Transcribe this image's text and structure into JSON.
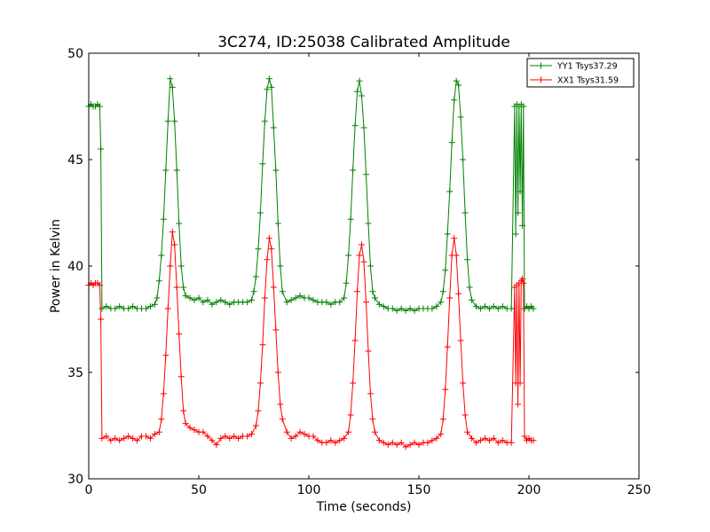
{
  "chart_data": {
    "type": "line",
    "title": "3C274, ID:25038 Calibrated Amplitude",
    "xlabel": "Time (seconds)",
    "ylabel": "Power in Kelvin",
    "xlim": [
      0,
      250
    ],
    "ylim": [
      30,
      50
    ],
    "xticks": [
      0,
      50,
      100,
      150,
      200,
      250
    ],
    "yticks": [
      30,
      35,
      40,
      45,
      50
    ],
    "grid": false,
    "legend_position": "top-right",
    "marker": "plus",
    "series": [
      {
        "name": "YY1 Tsys37.29",
        "color": "#008000",
        "points": [
          [
            0,
            47.5
          ],
          [
            1,
            47.6
          ],
          [
            2,
            47.5
          ],
          [
            3,
            47.5
          ],
          [
            4,
            47.6
          ],
          [
            5,
            47.5
          ],
          [
            5.5,
            45.5
          ],
          [
            6,
            38.0
          ],
          [
            8,
            38.1
          ],
          [
            10,
            38.0
          ],
          [
            12,
            38.0
          ],
          [
            14,
            38.1
          ],
          [
            16,
            38.0
          ],
          [
            18,
            38.0
          ],
          [
            20,
            38.1
          ],
          [
            22,
            38.0
          ],
          [
            24,
            38.0
          ],
          [
            26,
            38.0
          ],
          [
            28,
            38.1
          ],
          [
            30,
            38.2
          ],
          [
            31,
            38.5
          ],
          [
            32,
            39.3
          ],
          [
            33,
            40.5
          ],
          [
            34,
            42.2
          ],
          [
            35,
            44.5
          ],
          [
            36,
            46.8
          ],
          [
            37,
            48.8
          ],
          [
            38,
            48.4
          ],
          [
            39,
            46.8
          ],
          [
            40,
            44.5
          ],
          [
            41,
            42.0
          ],
          [
            42,
            40.0
          ],
          [
            43,
            39.0
          ],
          [
            44,
            38.6
          ],
          [
            46,
            38.5
          ],
          [
            48,
            38.4
          ],
          [
            50,
            38.5
          ],
          [
            52,
            38.3
          ],
          [
            54,
            38.4
          ],
          [
            56,
            38.2
          ],
          [
            58,
            38.3
          ],
          [
            60,
            38.4
          ],
          [
            62,
            38.3
          ],
          [
            64,
            38.2
          ],
          [
            66,
            38.3
          ],
          [
            68,
            38.3
          ],
          [
            70,
            38.3
          ],
          [
            72,
            38.3
          ],
          [
            74,
            38.4
          ],
          [
            75,
            38.8
          ],
          [
            76,
            39.5
          ],
          [
            77,
            40.8
          ],
          [
            78,
            42.5
          ],
          [
            79,
            44.8
          ],
          [
            80,
            46.8
          ],
          [
            81,
            48.3
          ],
          [
            82,
            48.8
          ],
          [
            83,
            48.4
          ],
          [
            84,
            46.5
          ],
          [
            85,
            44.5
          ],
          [
            86,
            42.0
          ],
          [
            87,
            40.0
          ],
          [
            88,
            38.8
          ],
          [
            90,
            38.3
          ],
          [
            92,
            38.4
          ],
          [
            94,
            38.5
          ],
          [
            96,
            38.6
          ],
          [
            98,
            38.5
          ],
          [
            100,
            38.5
          ],
          [
            102,
            38.4
          ],
          [
            104,
            38.3
          ],
          [
            106,
            38.3
          ],
          [
            108,
            38.3
          ],
          [
            110,
            38.2
          ],
          [
            112,
            38.3
          ],
          [
            114,
            38.3
          ],
          [
            116,
            38.5
          ],
          [
            117,
            39.2
          ],
          [
            118,
            40.5
          ],
          [
            119,
            42.2
          ],
          [
            120,
            44.5
          ],
          [
            121,
            46.6
          ],
          [
            122,
            48.2
          ],
          [
            123,
            48.7
          ],
          [
            124,
            48.0
          ],
          [
            125,
            46.5
          ],
          [
            126,
            44.3
          ],
          [
            127,
            42.0
          ],
          [
            128,
            40.0
          ],
          [
            129,
            38.8
          ],
          [
            130,
            38.5
          ],
          [
            132,
            38.2
          ],
          [
            134,
            38.1
          ],
          [
            136,
            38.0
          ],
          [
            138,
            38.0
          ],
          [
            140,
            37.9
          ],
          [
            142,
            38.0
          ],
          [
            144,
            37.9
          ],
          [
            146,
            38.0
          ],
          [
            148,
            37.9
          ],
          [
            150,
            38.0
          ],
          [
            152,
            38.0
          ],
          [
            154,
            38.0
          ],
          [
            156,
            38.0
          ],
          [
            158,
            38.1
          ],
          [
            160,
            38.3
          ],
          [
            161,
            38.8
          ],
          [
            162,
            39.8
          ],
          [
            163,
            41.5
          ],
          [
            164,
            43.5
          ],
          [
            165,
            45.8
          ],
          [
            166,
            47.8
          ],
          [
            167,
            48.7
          ],
          [
            168,
            48.5
          ],
          [
            169,
            47.0
          ],
          [
            170,
            45.0
          ],
          [
            171,
            42.5
          ],
          [
            172,
            40.3
          ],
          [
            173,
            39.0
          ],
          [
            174,
            38.4
          ],
          [
            176,
            38.1
          ],
          [
            178,
            38.0
          ],
          [
            180,
            38.1
          ],
          [
            182,
            38.0
          ],
          [
            184,
            38.1
          ],
          [
            186,
            38.0
          ],
          [
            188,
            38.1
          ],
          [
            190,
            38.0
          ],
          [
            192,
            38.0
          ],
          [
            193.5,
            47.5
          ],
          [
            194,
            41.5
          ],
          [
            194.5,
            47.6
          ],
          [
            195,
            42.5
          ],
          [
            195.5,
            47.5
          ],
          [
            196,
            43.5
          ],
          [
            196.5,
            47.6
          ],
          [
            197,
            41.9
          ],
          [
            197.5,
            47.5
          ],
          [
            198,
            38.0
          ],
          [
            199,
            38.1
          ],
          [
            200,
            38.0
          ],
          [
            201,
            38.1
          ],
          [
            202,
            38.0
          ]
        ]
      },
      {
        "name": "XX1 Tsys31.59",
        "color": "#ff0000",
        "points": [
          [
            0,
            39.1
          ],
          [
            1,
            39.2
          ],
          [
            2,
            39.1
          ],
          [
            3,
            39.2
          ],
          [
            4,
            39.2
          ],
          [
            5,
            39.1
          ],
          [
            5.5,
            37.5
          ],
          [
            6,
            31.9
          ],
          [
            8,
            32.0
          ],
          [
            10,
            31.8
          ],
          [
            12,
            31.9
          ],
          [
            14,
            31.8
          ],
          [
            16,
            31.9
          ],
          [
            18,
            32.0
          ],
          [
            20,
            31.9
          ],
          [
            22,
            31.8
          ],
          [
            24,
            32.0
          ],
          [
            26,
            32.0
          ],
          [
            28,
            31.9
          ],
          [
            30,
            32.1
          ],
          [
            32,
            32.2
          ],
          [
            33,
            32.8
          ],
          [
            34,
            34.0
          ],
          [
            35,
            35.8
          ],
          [
            36,
            38.0
          ],
          [
            37,
            40.0
          ],
          [
            38,
            41.6
          ],
          [
            39,
            41.0
          ],
          [
            40,
            39.0
          ],
          [
            41,
            36.8
          ],
          [
            42,
            34.8
          ],
          [
            43,
            33.2
          ],
          [
            44,
            32.6
          ],
          [
            46,
            32.4
          ],
          [
            48,
            32.3
          ],
          [
            50,
            32.2
          ],
          [
            52,
            32.2
          ],
          [
            54,
            32.0
          ],
          [
            56,
            31.8
          ],
          [
            58,
            31.6
          ],
          [
            60,
            31.9
          ],
          [
            62,
            32.0
          ],
          [
            64,
            31.9
          ],
          [
            66,
            32.0
          ],
          [
            68,
            31.9
          ],
          [
            70,
            32.0
          ],
          [
            72,
            32.0
          ],
          [
            74,
            32.1
          ],
          [
            76,
            32.5
          ],
          [
            77,
            33.2
          ],
          [
            78,
            34.5
          ],
          [
            79,
            36.3
          ],
          [
            80,
            38.5
          ],
          [
            81,
            40.3
          ],
          [
            82,
            41.3
          ],
          [
            83,
            40.8
          ],
          [
            84,
            39.0
          ],
          [
            85,
            37.0
          ],
          [
            86,
            35.0
          ],
          [
            87,
            33.5
          ],
          [
            88,
            32.8
          ],
          [
            90,
            32.2
          ],
          [
            92,
            31.9
          ],
          [
            94,
            32.0
          ],
          [
            96,
            32.2
          ],
          [
            98,
            32.1
          ],
          [
            100,
            32.0
          ],
          [
            102,
            32.0
          ],
          [
            104,
            31.8
          ],
          [
            106,
            31.7
          ],
          [
            108,
            31.7
          ],
          [
            110,
            31.8
          ],
          [
            112,
            31.7
          ],
          [
            114,
            31.8
          ],
          [
            116,
            31.9
          ],
          [
            118,
            32.2
          ],
          [
            119,
            33.0
          ],
          [
            120,
            34.5
          ],
          [
            121,
            36.5
          ],
          [
            122,
            38.8
          ],
          [
            123,
            40.5
          ],
          [
            124,
            41.0
          ],
          [
            125,
            40.2
          ],
          [
            126,
            38.3
          ],
          [
            127,
            36.0
          ],
          [
            128,
            34.0
          ],
          [
            129,
            32.8
          ],
          [
            130,
            32.2
          ],
          [
            132,
            31.8
          ],
          [
            134,
            31.7
          ],
          [
            136,
            31.6
          ],
          [
            138,
            31.7
          ],
          [
            140,
            31.6
          ],
          [
            142,
            31.7
          ],
          [
            144,
            31.5
          ],
          [
            146,
            31.6
          ],
          [
            148,
            31.7
          ],
          [
            150,
            31.6
          ],
          [
            152,
            31.7
          ],
          [
            154,
            31.7
          ],
          [
            156,
            31.8
          ],
          [
            158,
            31.9
          ],
          [
            160,
            32.1
          ],
          [
            161,
            32.8
          ],
          [
            162,
            34.2
          ],
          [
            163,
            36.2
          ],
          [
            164,
            38.5
          ],
          [
            165,
            40.5
          ],
          [
            166,
            41.3
          ],
          [
            167,
            40.5
          ],
          [
            168,
            38.7
          ],
          [
            169,
            36.5
          ],
          [
            170,
            34.5
          ],
          [
            171,
            33.0
          ],
          [
            172,
            32.2
          ],
          [
            174,
            31.9
          ],
          [
            176,
            31.7
          ],
          [
            178,
            31.8
          ],
          [
            180,
            31.9
          ],
          [
            182,
            31.8
          ],
          [
            184,
            31.9
          ],
          [
            186,
            31.7
          ],
          [
            188,
            31.8
          ],
          [
            190,
            31.7
          ],
          [
            192,
            31.7
          ],
          [
            193.5,
            39.0
          ],
          [
            194,
            34.5
          ],
          [
            194.5,
            39.1
          ],
          [
            195,
            33.5
          ],
          [
            195.5,
            39.2
          ],
          [
            196,
            34.5
          ],
          [
            196.5,
            39.3
          ],
          [
            197,
            39.4
          ],
          [
            197.5,
            39.2
          ],
          [
            198,
            32.0
          ],
          [
            199,
            31.8
          ],
          [
            200,
            31.9
          ],
          [
            201,
            31.8
          ],
          [
            202,
            31.8
          ]
        ]
      }
    ]
  }
}
